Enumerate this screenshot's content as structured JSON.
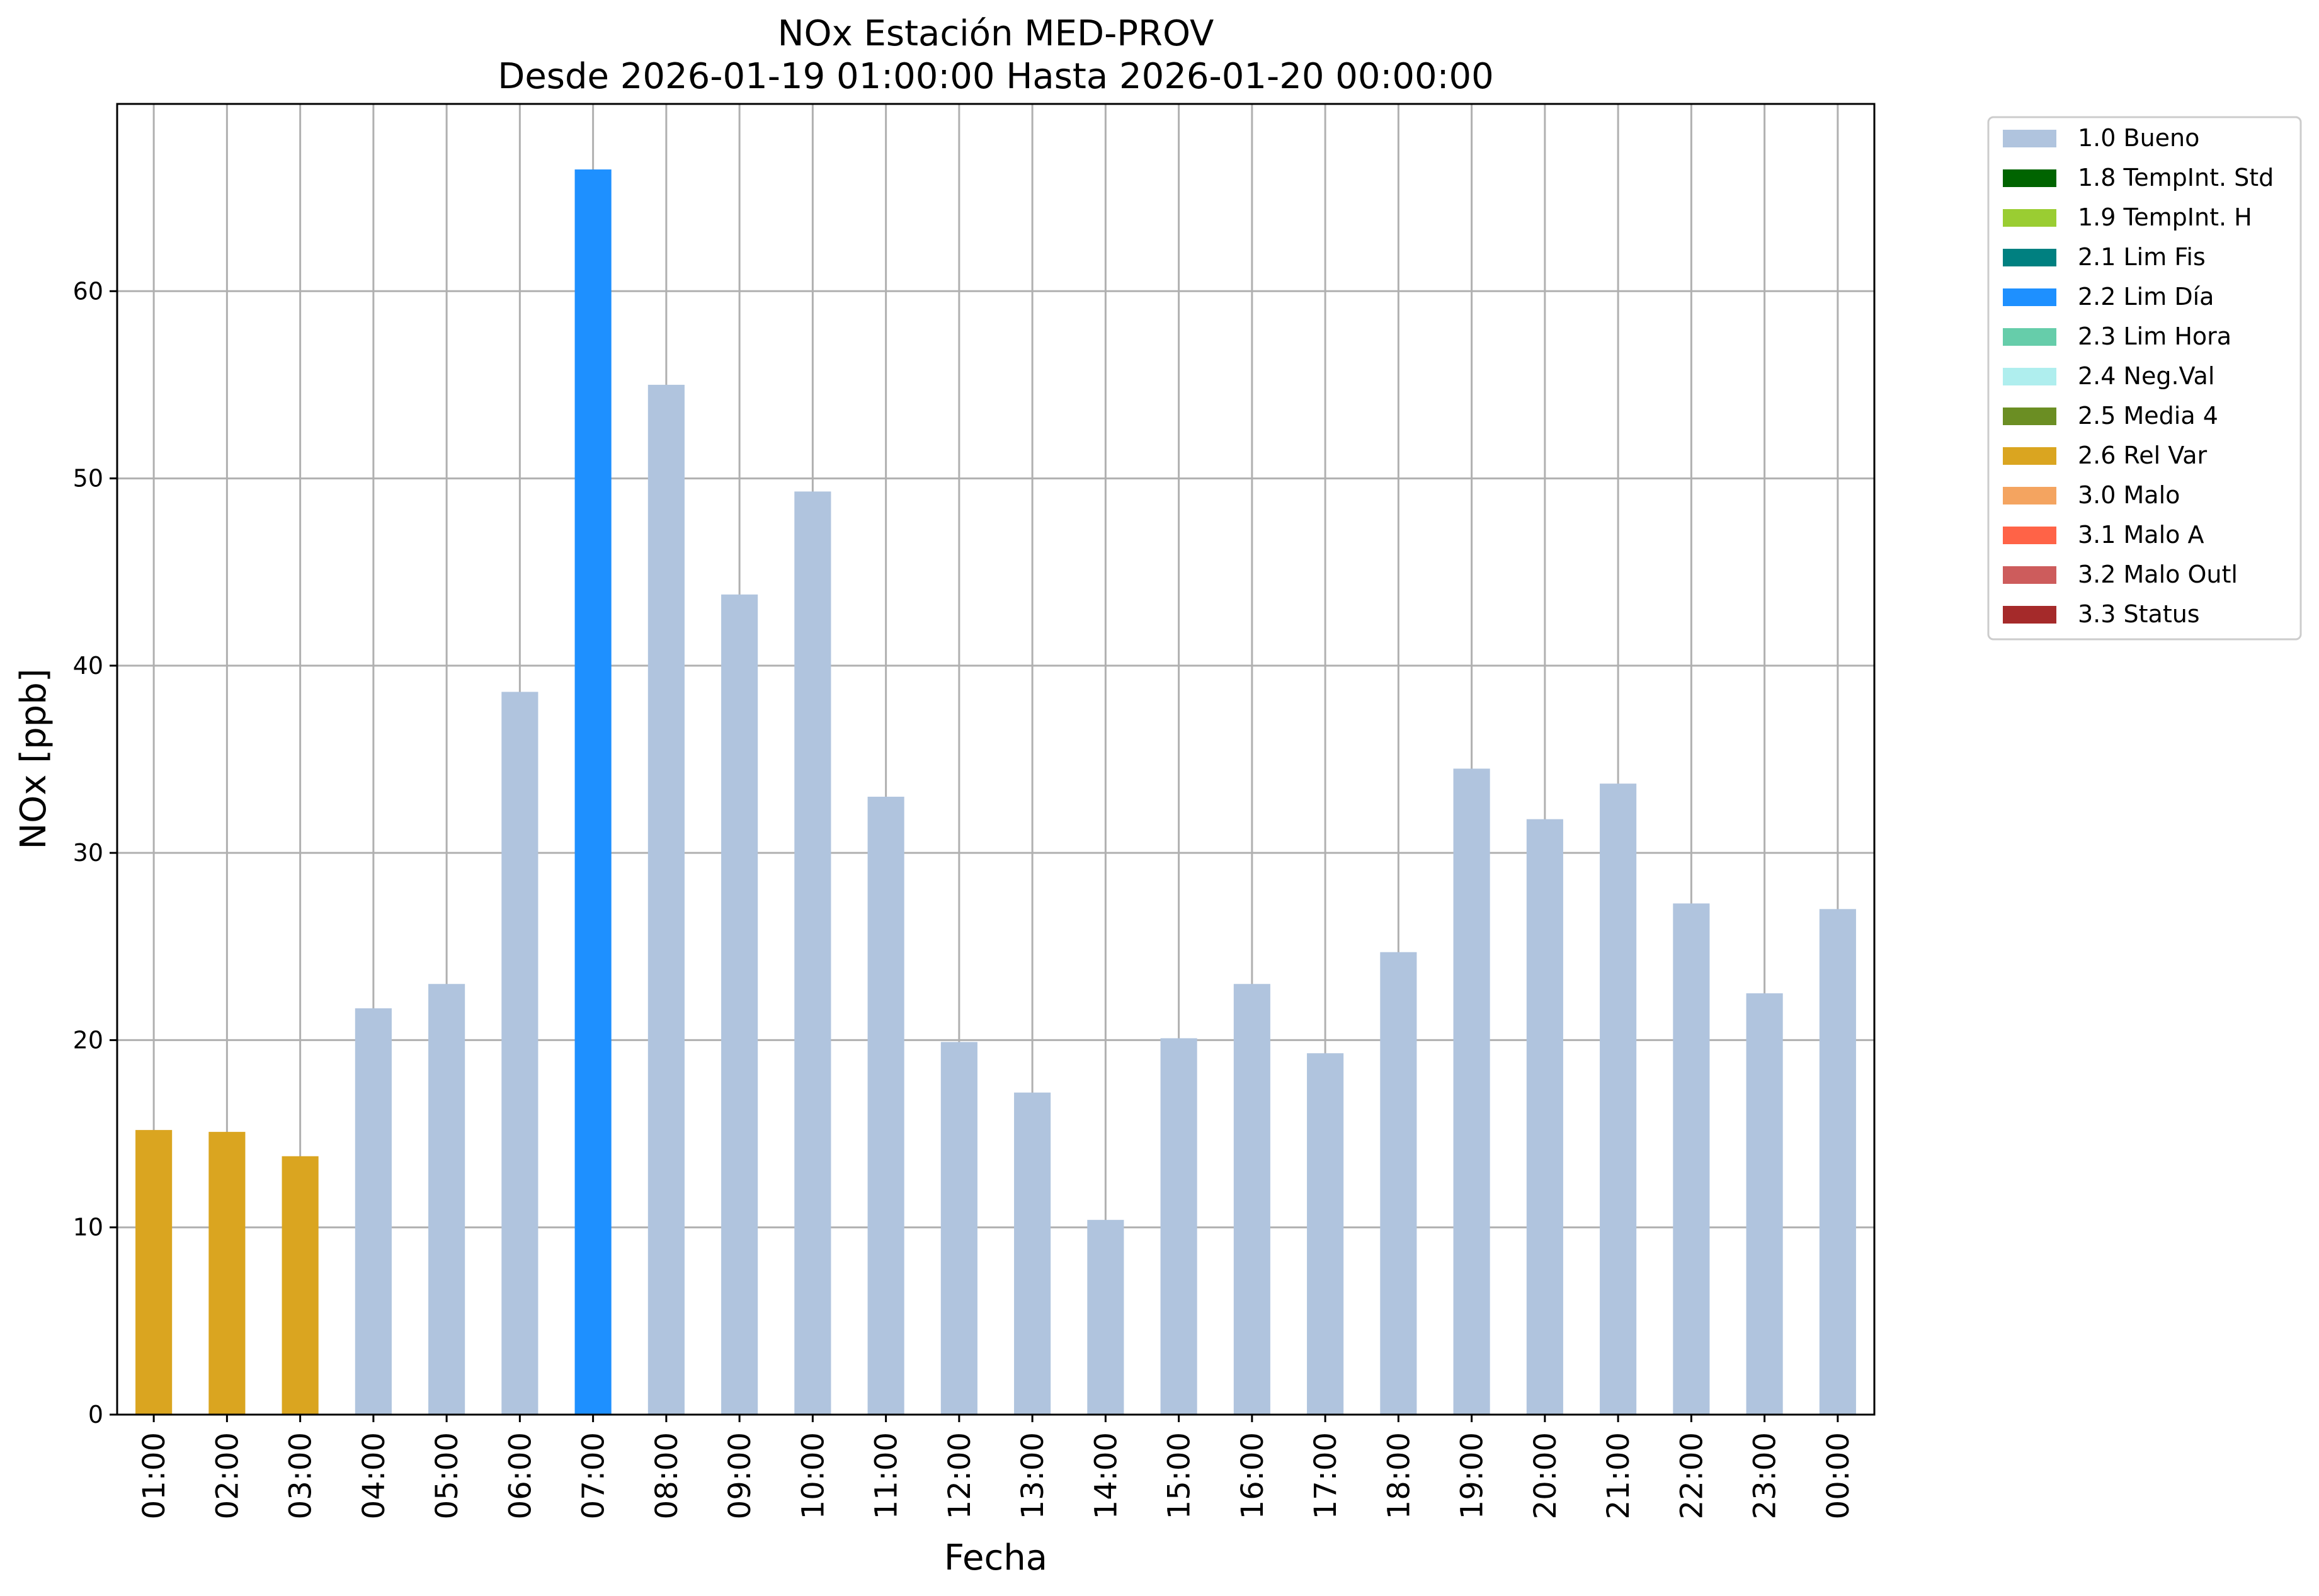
{
  "colors": {
    "background": "#ffffff",
    "grid": "#b0b0b0",
    "axis": "#000000"
  },
  "chart_data": {
    "type": "bar",
    "title": "NOx Estación MED-PROV",
    "subtitle": "Desde 2026-01-19 01:00:00 Hasta 2026-01-20 00:00:00",
    "xlabel": "Fecha",
    "ylabel": "NOx [ppb]",
    "ylim": [
      0,
      70
    ],
    "yticks": [
      0,
      10,
      20,
      30,
      40,
      50,
      60
    ],
    "grid": true,
    "legend_position": "outside-top-right",
    "categories": [
      "01:00",
      "02:00",
      "03:00",
      "04:00",
      "05:00",
      "06:00",
      "07:00",
      "08:00",
      "09:00",
      "10:00",
      "11:00",
      "12:00",
      "13:00",
      "14:00",
      "15:00",
      "16:00",
      "17:00",
      "18:00",
      "19:00",
      "20:00",
      "21:00",
      "22:00",
      "23:00",
      "00:00"
    ],
    "values": [
      15.2,
      15.1,
      13.8,
      21.7,
      23.0,
      38.6,
      66.5,
      55.0,
      43.8,
      49.3,
      33.0,
      19.9,
      17.2,
      10.4,
      20.1,
      23.0,
      19.3,
      24.7,
      34.5,
      31.8,
      33.7,
      27.3,
      22.5,
      27.0
    ],
    "flags": [
      "2.6 Rel Var",
      "2.6 Rel Var",
      "2.6 Rel Var",
      "1.0 Bueno",
      "1.0 Bueno",
      "1.0 Bueno",
      "2.2 Lim Día",
      "1.0 Bueno",
      "1.0 Bueno",
      "1.0 Bueno",
      "1.0 Bueno",
      "1.0 Bueno",
      "1.0 Bueno",
      "1.0 Bueno",
      "1.0 Bueno",
      "1.0 Bueno",
      "1.0 Bueno",
      "1.0 Bueno",
      "1.0 Bueno",
      "1.0 Bueno",
      "1.0 Bueno",
      "1.0 Bueno",
      "1.0 Bueno",
      "1.0 Bueno"
    ],
    "legend": [
      {
        "name": "1.0 Bueno",
        "color": "#b0c4de"
      },
      {
        "name": "1.8 TempInt. Std",
        "color": "#006400"
      },
      {
        "name": "1.9 TempInt. H",
        "color": "#9acd32"
      },
      {
        "name": "2.1 Lim Fis",
        "color": "#008080"
      },
      {
        "name": "2.2 Lim Día",
        "color": "#1e90ff"
      },
      {
        "name": "2.3 Lim Hora",
        "color": "#66cdaa"
      },
      {
        "name": "2.4 Neg.Val",
        "color": "#afeeee"
      },
      {
        "name": "2.5 Media 4",
        "color": "#6b8e23"
      },
      {
        "name": "2.6 Rel Var",
        "color": "#daa520"
      },
      {
        "name": "3.0 Malo",
        "color": "#f4a460"
      },
      {
        "name": "3.1 Malo A",
        "color": "#ff6347"
      },
      {
        "name": "3.2 Malo Outl",
        "color": "#cd5c5c"
      },
      {
        "name": "3.3 Status",
        "color": "#a52a2a"
      }
    ]
  }
}
